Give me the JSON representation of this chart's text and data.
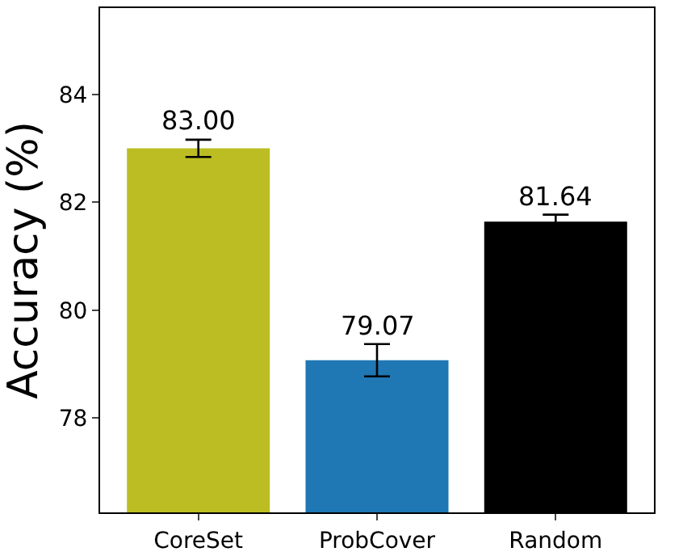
{
  "chart_data": {
    "type": "bar",
    "ylabel": "Accuracy (%)",
    "categories": [
      "CoreSet",
      "ProbCover",
      "Random"
    ],
    "values": [
      83.0,
      79.07,
      81.64
    ],
    "colors": [
      "#bcbd22",
      "#1f77b4",
      "#000000"
    ],
    "errors": [
      0.16,
      0.3,
      0.13
    ],
    "value_labels": [
      "83.00",
      "79.07",
      "81.64"
    ],
    "ylim": [
      76.25,
      85.6
    ],
    "yticks": [
      78,
      80,
      82,
      84
    ],
    "grid": false
  }
}
